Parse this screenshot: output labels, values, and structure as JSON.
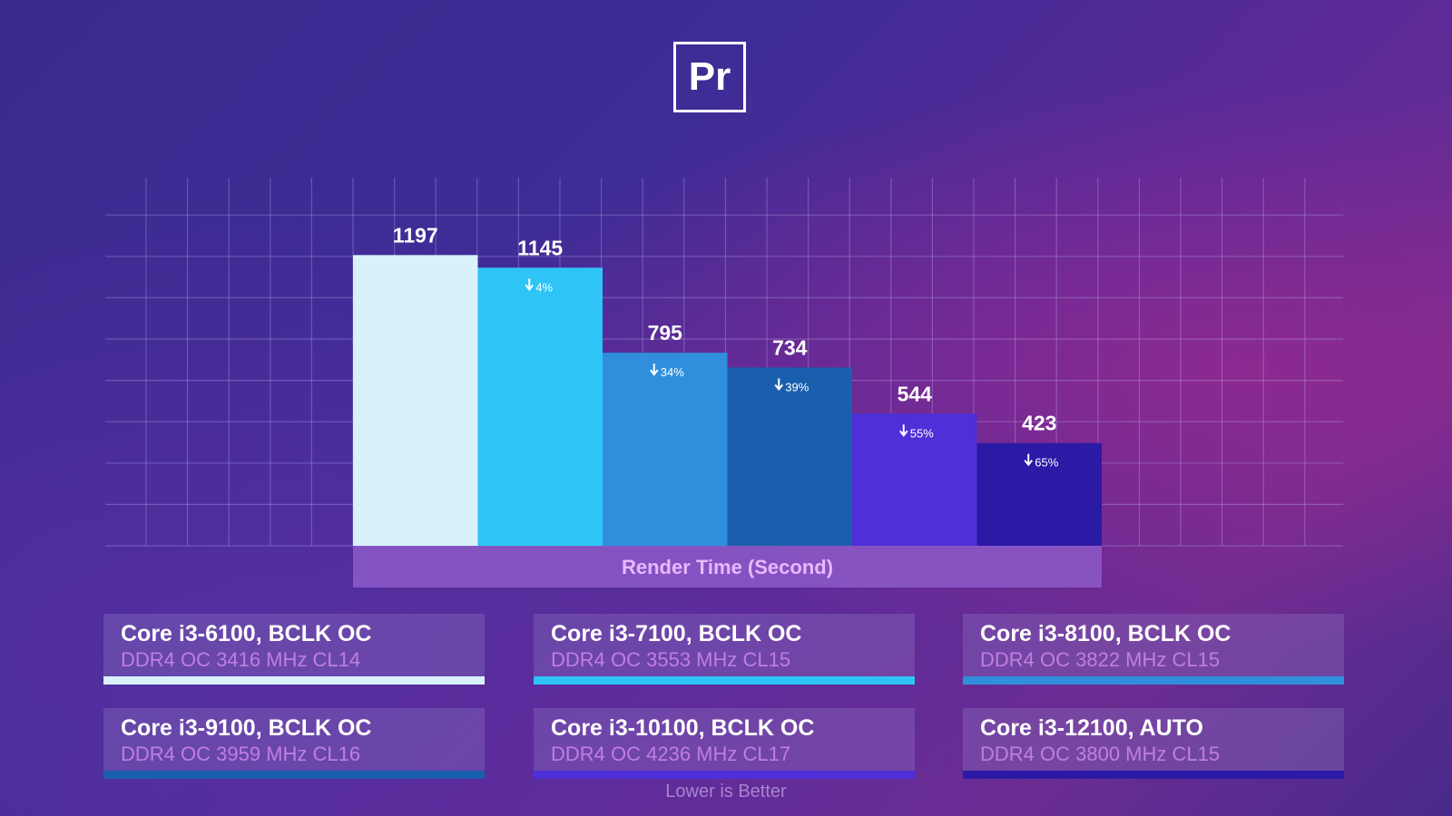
{
  "logo": {
    "text": "Pr"
  },
  "chart_data": {
    "type": "bar",
    "xlabel": "Render Time (Second)",
    "categories": [
      "Core i3-6100, BCLK OC",
      "Core i3-7100, BCLK OC",
      "Core i3-8100, BCLK OC",
      "Core i3-9100, BCLK OC",
      "Core i3-10100, BCLK OC",
      "Core i3-12100, AUTO"
    ],
    "values": [
      1197,
      1145,
      795,
      734,
      544,
      423
    ],
    "value_labels": [
      "1197",
      "1145",
      "795",
      "734",
      "544",
      "423"
    ],
    "deltas": [
      "",
      "4%",
      "34%",
      "39%",
      "55%",
      "65%"
    ],
    "colors": [
      "#d8f1fb",
      "#2ec4f6",
      "#2f8fdc",
      "#1a5fae",
      "#4e2fd8",
      "#2a1aa6"
    ],
    "ylim": [
      0,
      1350
    ],
    "grid": true
  },
  "legend": [
    {
      "title": "Core i3-6100, BCLK OC",
      "subtitle": "DDR4 OC 3416 MHz CL14",
      "color": "#d8f1fb"
    },
    {
      "title": "Core i3-7100, BCLK OC",
      "subtitle": "DDR4 OC 3553 MHz CL15",
      "color": "#2ec4f6"
    },
    {
      "title": "Core i3-8100, BCLK OC",
      "subtitle": "DDR4 OC 3822 MHz CL15",
      "color": "#2f8fdc"
    },
    {
      "title": "Core i3-9100, BCLK OC",
      "subtitle": "DDR4 OC 3959 MHz CL16",
      "color": "#1a5fae"
    },
    {
      "title": "Core i3-10100, BCLK OC",
      "subtitle": "DDR4 OC 4236 MHz CL17",
      "color": "#4e2fd8"
    },
    {
      "title": "Core i3-12100, AUTO",
      "subtitle": "DDR4 OC 3800 MHz CL15",
      "color": "#2a1aa6"
    }
  ],
  "note": "Lower is Better"
}
